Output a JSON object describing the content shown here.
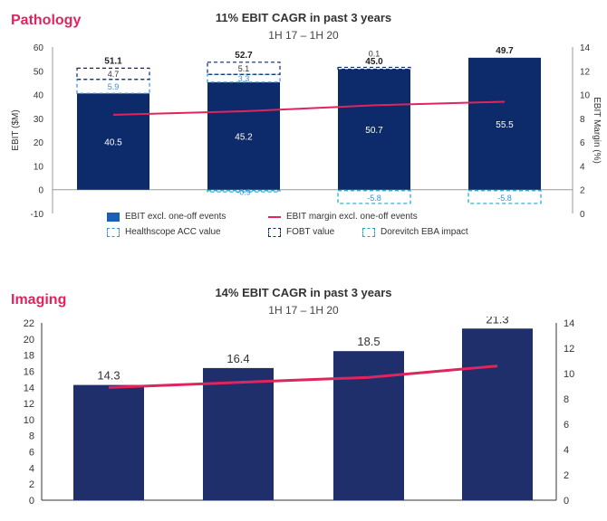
{
  "pathology": {
    "section_label": "Pathology",
    "title": "11% EBIT CAGR in past 3 years",
    "subtitle": "1H 17 – 1H 20",
    "legend": {
      "ebit": "EBIT excl. one-off events",
      "margin": "EBIT margin excl. one-off events",
      "healthscope": "Healthscope ACC value",
      "fobt": "FOBT value",
      "dorevitch": "Dorevitch EBA impact"
    }
  },
  "imaging": {
    "section_label": "Imaging",
    "title": "14% EBIT CAGR in past 3 years",
    "subtitle": "1H 17 – 1H 20"
  },
  "colors": {
    "navy": "#0d2a6b",
    "pink": "#e0245e",
    "teal": "#1aa7c9",
    "light_blue": "#3a8fd6"
  },
  "chart_data": [
    {
      "type": "bar",
      "title": "11% EBIT CAGR in past 3 years",
      "subtitle": "1H 17 – 1H 20",
      "ylabel": "EBIT ($M)",
      "y2label": "EBIT Margin (%)",
      "ylim": [
        -10,
        60
      ],
      "yticks": [
        -10,
        0,
        10,
        20,
        30,
        40,
        50,
        60
      ],
      "y2lim": [
        0,
        14
      ],
      "y2ticks": [
        0,
        2,
        4,
        6,
        8,
        10,
        12,
        14
      ],
      "categories": [
        "",
        "",
        "",
        ""
      ],
      "totals": [
        "51.1",
        "52.7",
        "45.0",
        "49.7"
      ],
      "series": [
        {
          "name": "EBIT excl. one-off events",
          "values": [
            40.5,
            45.2,
            50.7,
            55.5
          ],
          "labels": [
            "40.5",
            "45.2",
            "50.7",
            "55.5"
          ]
        },
        {
          "name": "Healthscope ACC value",
          "values": [
            5.9,
            3.3,
            0,
            0
          ],
          "labels": [
            "5.9",
            "3.3",
            "",
            ""
          ]
        },
        {
          "name": "FOBT value",
          "values": [
            4.7,
            5.1,
            0.1,
            0
          ],
          "labels": [
            "4.7",
            "5.1",
            "0.1",
            ""
          ]
        },
        {
          "name": "Dorevitch EBA impact",
          "values": [
            0,
            -0.9,
            -5.8,
            -5.8
          ],
          "labels": [
            "",
            "-0.9",
            "-5.8",
            "-5.8"
          ]
        }
      ],
      "line": {
        "name": "EBIT margin excl. one-off events",
        "axis": "y2",
        "values": [
          8.3,
          8.6,
          9.1,
          9.4
        ]
      }
    },
    {
      "type": "bar",
      "title": "14% EBIT CAGR in past 3 years",
      "subtitle": "1H 17 – 1H 20",
      "ylim": [
        0,
        22
      ],
      "yticks": [
        0,
        2,
        4,
        6,
        8,
        10,
        12,
        14,
        16,
        18,
        20,
        22
      ],
      "y2lim": [
        0,
        14
      ],
      "y2ticks": [
        0,
        2,
        4,
        6,
        8,
        10,
        12,
        14
      ],
      "categories": [
        "",
        "",
        "",
        ""
      ],
      "values": [
        14.3,
        16.4,
        18.5,
        21.3
      ],
      "labels": [
        "14.3",
        "16.4",
        "18.5",
        "21.3"
      ],
      "line": {
        "axis": "y2",
        "values": [
          8.9,
          9.3,
          9.7,
          10.6
        ]
      }
    }
  ]
}
